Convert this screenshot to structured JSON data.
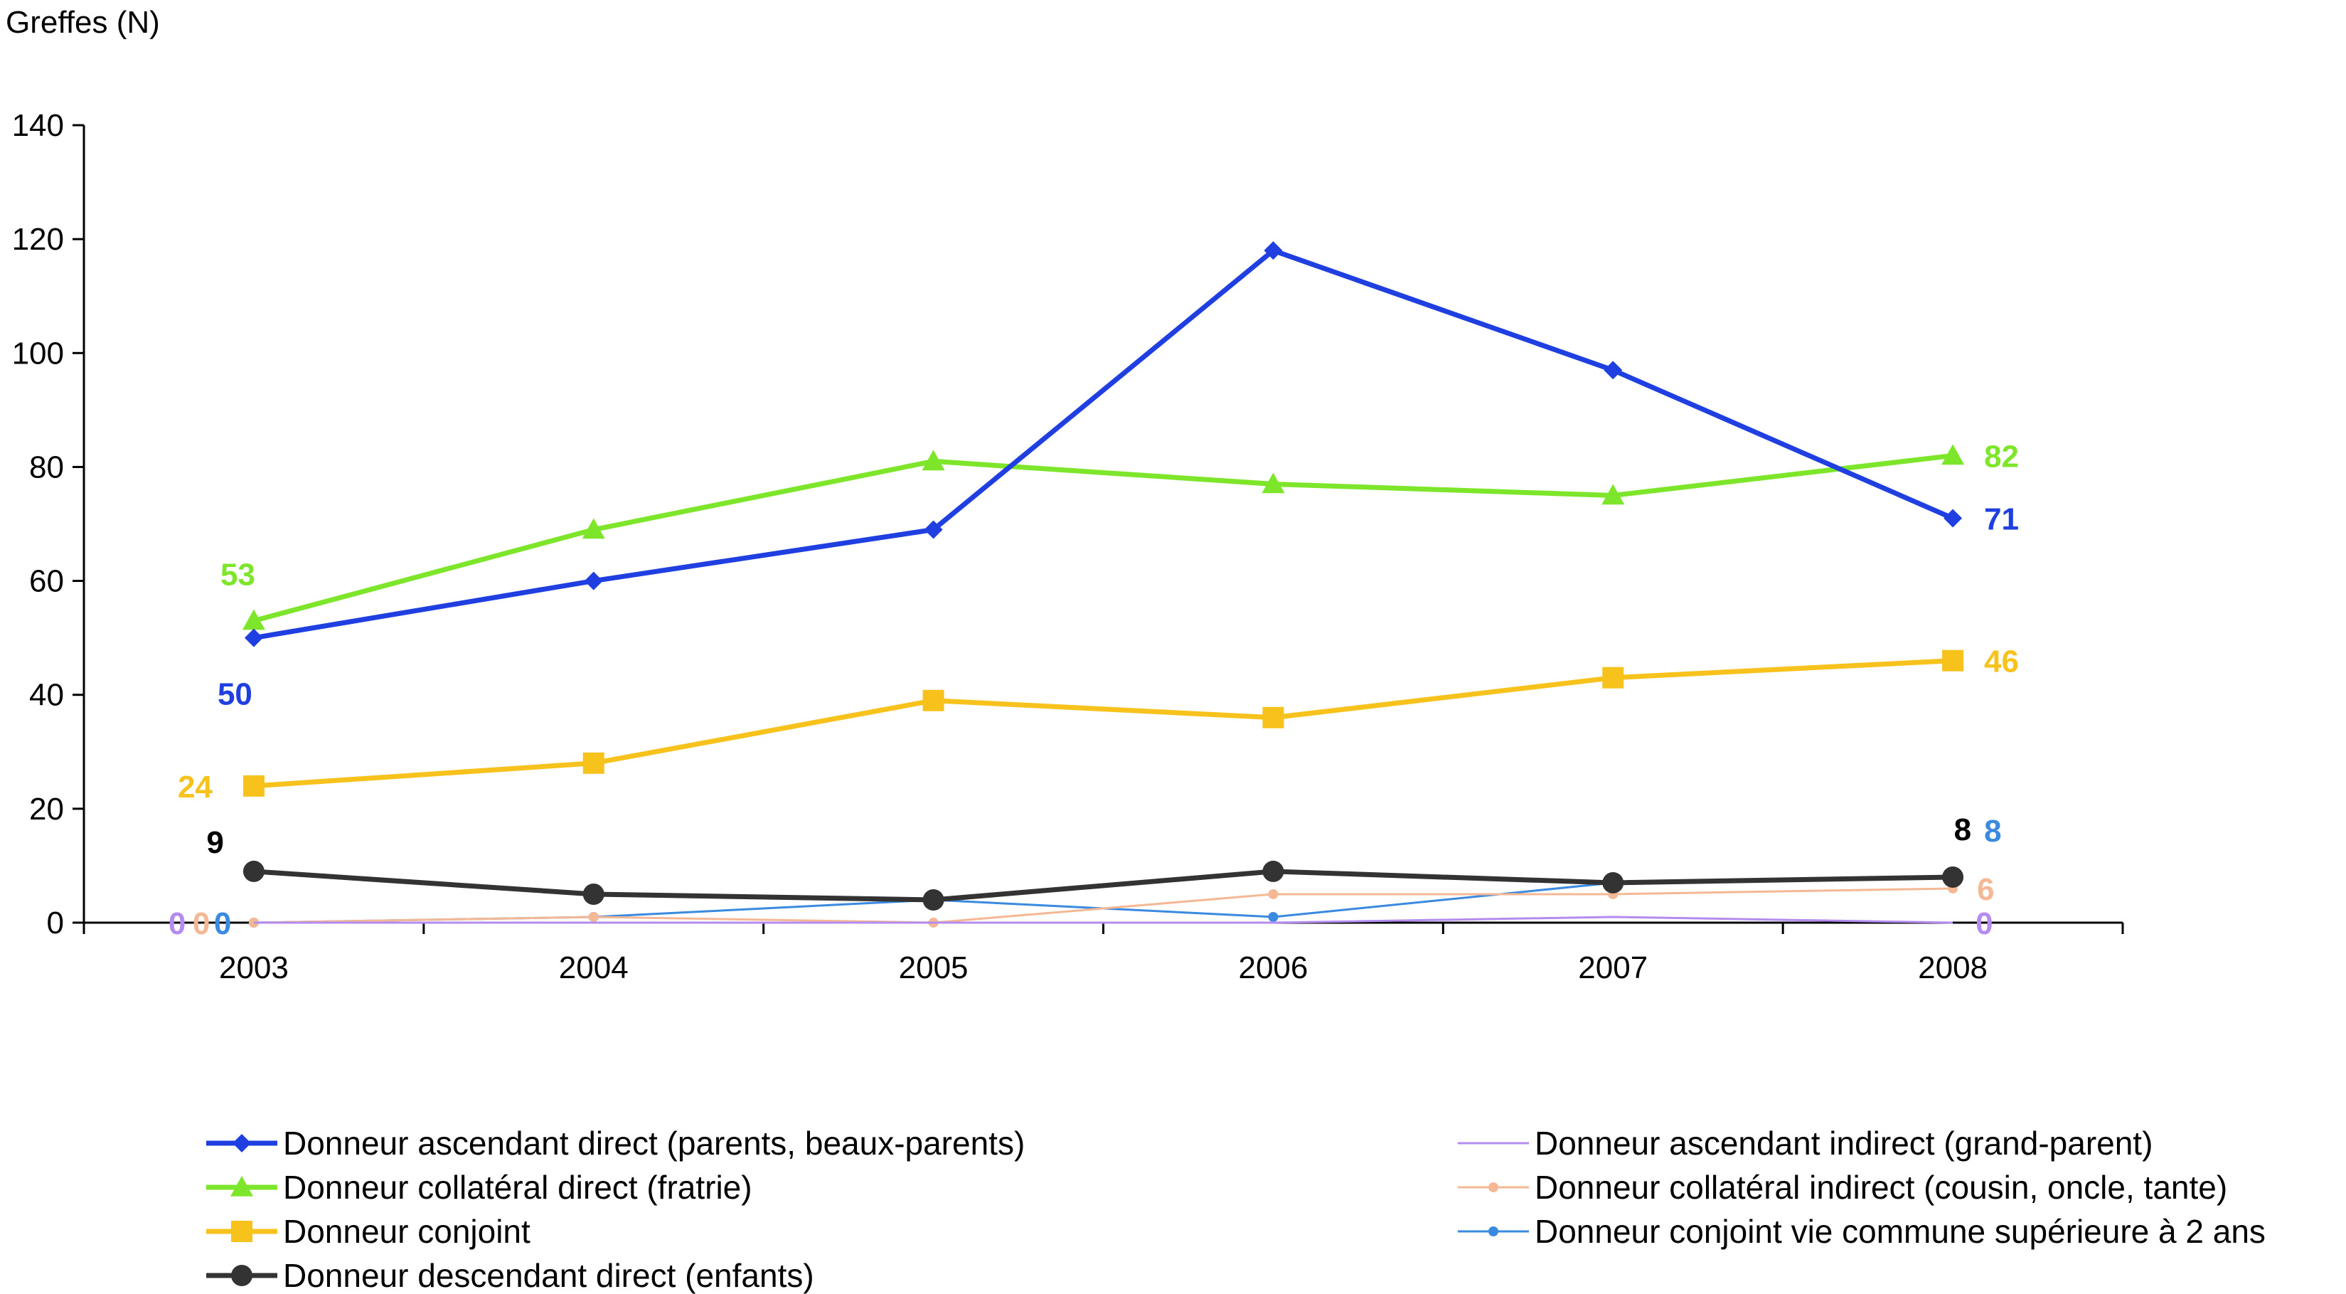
{
  "chart_data": {
    "type": "line",
    "ylabel": "Greffes (N)",
    "xlabel": "",
    "ylim": [
      0,
      140
    ],
    "yticks": [
      "0",
      "20",
      "40",
      "60",
      "80",
      "100",
      "120",
      "140"
    ],
    "categories": [
      "2003",
      "2004",
      "2005",
      "2006",
      "2007",
      "2008"
    ],
    "grid": false,
    "legend_position": "bottom",
    "series": [
      {
        "name": "Donneur ascendant direct (parents, beaux-parents)",
        "color": "#1f3fe0",
        "marker": "diamond",
        "values": [
          50,
          60,
          69,
          118,
          97,
          71
        ],
        "first_label": "50",
        "last_label": "71"
      },
      {
        "name": "Donneur collatéral direct (fratrie)",
        "color": "#7ee62a",
        "marker": "triangle",
        "values": [
          53,
          69,
          81,
          77,
          75,
          82
        ],
        "first_label": "53",
        "last_label": "82"
      },
      {
        "name": "Donneur conjoint",
        "color": "#f8c21c",
        "marker": "square",
        "values": [
          24,
          28,
          39,
          36,
          43,
          46
        ],
        "first_label": "24",
        "last_label": "46"
      },
      {
        "name": "Donneur descendant direct (enfants)",
        "color": "#333333",
        "marker": "circle",
        "values": [
          9,
          5,
          4,
          9,
          7,
          8
        ],
        "first_label": "9",
        "last_label": "8"
      },
      {
        "name": "Donneur ascendant indirect (grand-parent)",
        "color": "#b48cf0",
        "marker": "none",
        "values": [
          0,
          0,
          0,
          0,
          1,
          0
        ],
        "first_label": "0",
        "last_label": "0"
      },
      {
        "name": "Donneur collatéral indirect (cousin, oncle, tante)",
        "color": "#f5b894",
        "marker": "small-circle",
        "values": [
          0,
          1,
          0,
          5,
          5,
          6
        ],
        "first_label": "0",
        "last_label": "6"
      },
      {
        "name": "Donneur conjoint vie commune supérieure à 2 ans",
        "color": "#3a8ae0",
        "marker": "small-circle",
        "values": [
          0,
          1,
          4,
          1,
          7,
          8
        ],
        "first_label": "0",
        "last_label": "8"
      }
    ]
  }
}
